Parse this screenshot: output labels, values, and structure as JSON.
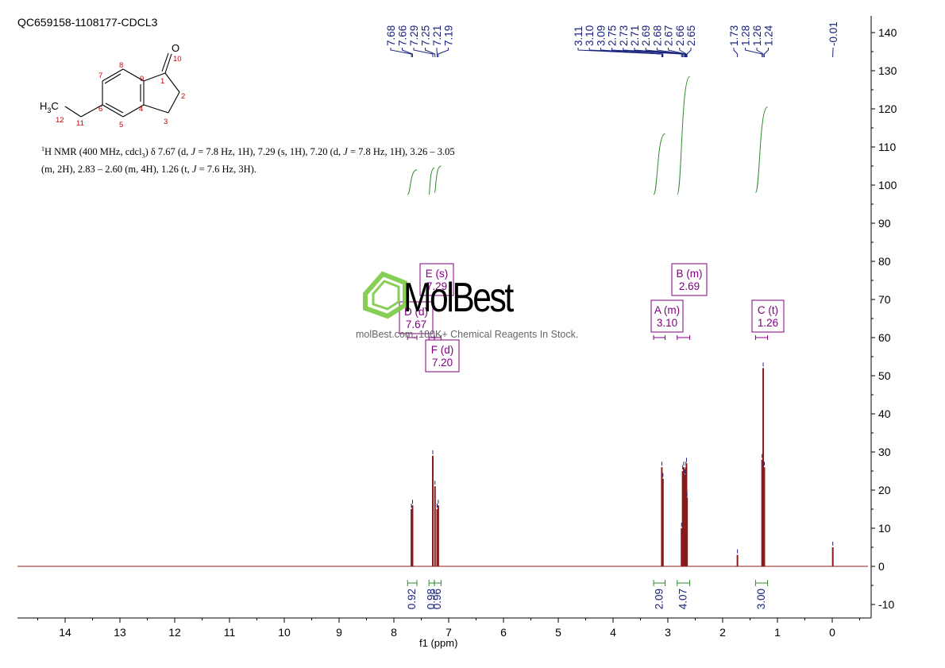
{
  "sample_id": "QC659158-1108177-CDCL3",
  "nmr_description": {
    "nucleus_sup": "1",
    "line1_prefix": "H NMR (400 MHz, cdcl",
    "line1_sub": "3",
    "line1_rest": ") δ 7.67 (d, ",
    "j": "J",
    "line1_a": " = 7.8 Hz, 1H), 7.29 (s, 1H), 7.20 (d, ",
    "line1_b": " = 7.8 Hz, 1H), 3.26 – 3.05",
    "line2_a": "(m, 2H), 2.83 – 2.60 (m, 4H), 1.26 (t, ",
    "line2_b": " = 7.6 Hz, 3H)."
  },
  "structure": {
    "o_label": "O",
    "h3c_label": "H",
    "h3c_sub": "3",
    "c_label": "C",
    "atom_numbers": [
      "10",
      "1",
      "2",
      "3",
      "4",
      "5",
      "6",
      "7",
      "8",
      "9",
      "11",
      "12"
    ]
  },
  "watermark": {
    "brand": "MolBest",
    "tagline": "molBest.com, 180K+ Chemical Reagents In Stock."
  },
  "colors": {
    "spectrum": "#8b1a1a",
    "peak_labels": "#1a237e",
    "integral": "#2e8b2e",
    "multiplet_box": "#800080",
    "logo": "#7ac943"
  },
  "chart_data": {
    "type": "line",
    "title": "",
    "xlabel": "f1 (ppm)",
    "ylabel": "",
    "xlim": [
      14.9,
      -0.6
    ],
    "ylim": [
      -13,
      145
    ],
    "x_ticks": [
      14,
      13,
      12,
      11,
      10,
      9,
      8,
      7,
      6,
      5,
      4,
      3,
      2,
      1,
      0
    ],
    "y_ticks": [
      -10,
      0,
      10,
      20,
      30,
      40,
      50,
      60,
      70,
      80,
      90,
      100,
      110,
      120,
      130,
      140
    ],
    "peaks": [
      {
        "ppm": 7.68,
        "height": 15
      },
      {
        "ppm": 7.66,
        "height": 16
      },
      {
        "ppm": 7.29,
        "height": 29
      },
      {
        "ppm": 7.25,
        "height": 21
      },
      {
        "ppm": 7.21,
        "height": 15
      },
      {
        "ppm": 7.19,
        "height": 16
      },
      {
        "ppm": 3.11,
        "height": 26
      },
      {
        "ppm": 3.1,
        "height": 21
      },
      {
        "ppm": 3.09,
        "height": 23
      },
      {
        "ppm": 2.75,
        "height": 10
      },
      {
        "ppm": 2.73,
        "height": 25
      },
      {
        "ppm": 2.71,
        "height": 26
      },
      {
        "ppm": 2.69,
        "height": 24
      },
      {
        "ppm": 2.68,
        "height": 23
      },
      {
        "ppm": 2.67,
        "height": 26
      },
      {
        "ppm": 2.66,
        "height": 27
      },
      {
        "ppm": 2.65,
        "height": 18
      },
      {
        "ppm": 1.73,
        "height": 3
      },
      {
        "ppm": 1.28,
        "height": 28
      },
      {
        "ppm": 1.26,
        "height": 52
      },
      {
        "ppm": 1.24,
        "height": 26
      },
      {
        "ppm": -0.01,
        "height": 5
      }
    ],
    "peak_labels": [
      "7.68",
      "7.66",
      "7.29",
      "7.25",
      "7.21",
      "7.19",
      "3.11",
      "3.10",
      "3.09",
      "2.75",
      "2.73",
      "2.71",
      "2.69",
      "2.68",
      "2.67",
      "2.66",
      "2.65",
      "1.73",
      "1.28",
      "1.26",
      "1.24",
      "-0.01"
    ],
    "integrals": [
      {
        "from": 7.75,
        "to": 7.58,
        "value": "0.92",
        "y_start": 97.5,
        "y_end": 104
      },
      {
        "from": 7.36,
        "to": 7.26,
        "value": "0.98",
        "y_start": 97.5,
        "y_end": 104.5
      },
      {
        "from": 7.26,
        "to": 7.14,
        "value": "0.96",
        "y_start": 98,
        "y_end": 105
      },
      {
        "from": 3.26,
        "to": 3.05,
        "value": "2.09",
        "y_start": 97.5,
        "y_end": 113.5
      },
      {
        "from": 2.83,
        "to": 2.6,
        "value": "4.07",
        "y_start": 97.5,
        "y_end": 128.5
      },
      {
        "from": 1.4,
        "to": 1.18,
        "value": "3.00",
        "y_start": 98,
        "y_end": 120.5
      }
    ],
    "multiplets": [
      {
        "letter": "A (m)",
        "shift": "3.10"
      },
      {
        "letter": "B (m)",
        "shift": "2.69"
      },
      {
        "letter": "C (t)",
        "shift": "1.26"
      },
      {
        "letter": "D (d)",
        "shift": "7.67"
      },
      {
        "letter": "E (s)",
        "shift": "7.29"
      },
      {
        "letter": "F (d)",
        "shift": "7.20"
      }
    ]
  }
}
